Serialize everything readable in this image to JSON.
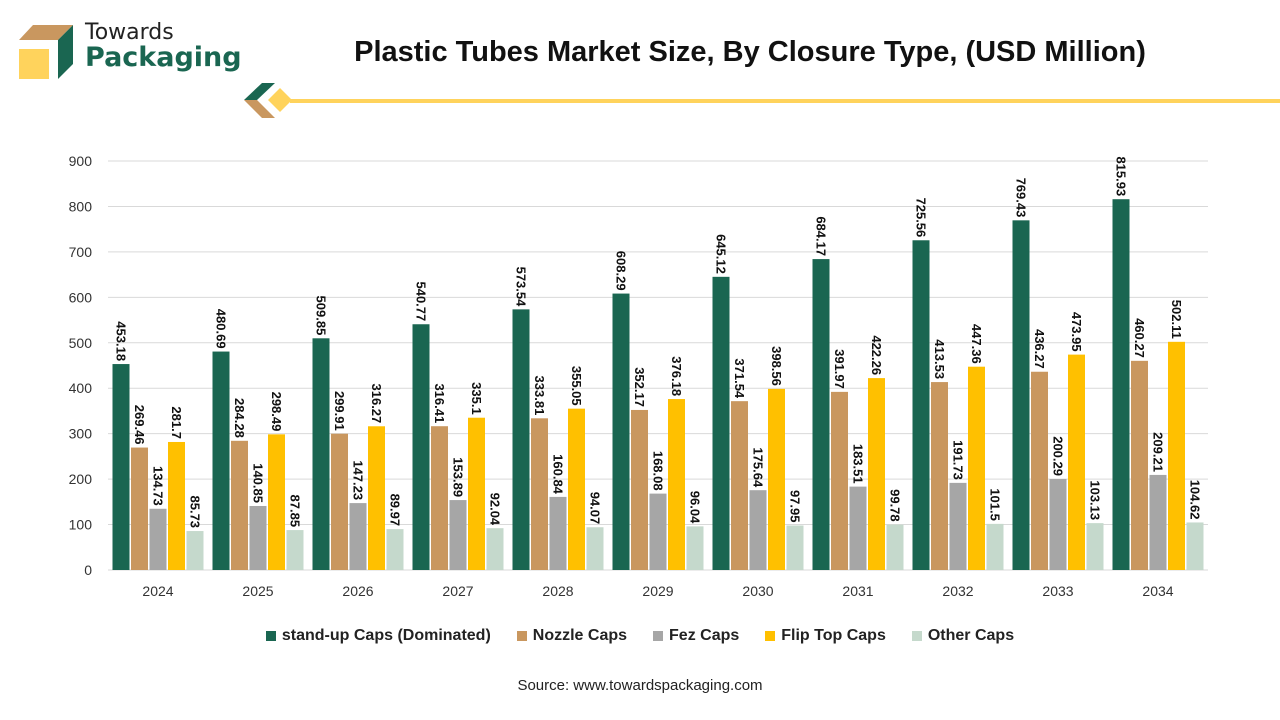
{
  "brand": {
    "line1": "Towards",
    "line2": "Packaging"
  },
  "colors": {
    "green": "#1a6651",
    "tan": "#c9975f",
    "grey": "#a6a6a6",
    "yellow": "#ffc000",
    "light": "#c5d9cc"
  },
  "source": "Source: www.towardspackaging.com",
  "chart_data": {
    "type": "bar",
    "title": "Plastic Tubes Market Size, By Closure Type, (USD Million)",
    "categories": [
      "2024",
      "2025",
      "2026",
      "2027",
      "2028",
      "2029",
      "2030",
      "2031",
      "2032",
      "2033",
      "2034"
    ],
    "ylim": [
      0,
      900
    ],
    "yticks": [
      0,
      100,
      200,
      300,
      400,
      500,
      600,
      700,
      800,
      900
    ],
    "grid": true,
    "legend": "bottom",
    "series": [
      {
        "name": "stand-up Caps (Dominated)",
        "color": "#1a6651",
        "values": [
          453.18,
          480.69,
          509.85,
          540.77,
          573.54,
          608.29,
          645.12,
          684.17,
          725.56,
          769.43,
          815.93
        ]
      },
      {
        "name": "Nozzle Caps",
        "color": "#c9975f",
        "values": [
          269.46,
          284.28,
          299.91,
          316.41,
          333.81,
          352.17,
          371.54,
          391.97,
          413.53,
          436.27,
          460.27
        ]
      },
      {
        "name": "Fez Caps",
        "color": "#a6a6a6",
        "values": [
          134.73,
          140.85,
          147.23,
          153.89,
          160.84,
          168.08,
          175.64,
          183.51,
          191.73,
          200.29,
          209.21
        ]
      },
      {
        "name": "Flip Top Caps",
        "color": "#ffc000",
        "values": [
          281.7,
          298.49,
          316.27,
          335.1,
          355.05,
          376.18,
          398.56,
          422.26,
          447.36,
          473.95,
          502.11
        ]
      },
      {
        "name": "Other Caps",
        "color": "#c5d9cc",
        "values": [
          85.73,
          87.85,
          89.97,
          92.04,
          94.07,
          96.04,
          97.95,
          99.78,
          101.5,
          103.13,
          104.62
        ]
      }
    ]
  }
}
